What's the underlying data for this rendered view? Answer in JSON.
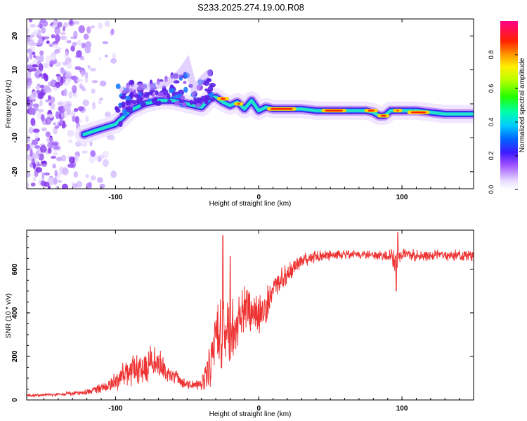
{
  "title": "S233.2025.274.19.00.R08",
  "colorbar": {
    "label": "Normalized spectral amplitude",
    "ticks": [
      "0.0",
      "0.2",
      "0.4",
      "0.6",
      "0.8"
    ],
    "range": [
      0,
      1
    ]
  },
  "chart_data": [
    {
      "type": "heatmap",
      "name": "spectrogram",
      "xlabel": "Height of straight line (km)",
      "ylabel": "Frequency (Hz)",
      "xlim": [
        -162,
        150
      ],
      "ylim": [
        -25,
        25
      ],
      "xticks": [
        -100,
        0,
        100
      ],
      "yticks": [
        -20,
        -10,
        0,
        10,
        20
      ],
      "noise_region_x": [
        -162,
        -110
      ],
      "ridge": {
        "x": [
          -122,
          -115,
          -100,
          -90,
          -80,
          -70,
          -60,
          -50,
          -40,
          -34,
          -30,
          -25,
          -20,
          -15,
          -10,
          -5,
          0,
          5,
          10,
          20,
          30,
          40,
          50,
          60,
          70,
          75,
          80,
          84,
          88,
          92,
          96,
          100,
          110,
          120,
          130,
          140,
          150
        ],
        "y": [
          -9,
          -8,
          -6,
          -2,
          0,
          1,
          1,
          0,
          -1,
          1.5,
          2,
          0.5,
          -0.5,
          0.5,
          -1.5,
          1,
          -2,
          -1,
          -1.5,
          -1.5,
          -1.5,
          -2,
          -2,
          -2,
          -2,
          -2,
          -2.5,
          -3.5,
          -3.5,
          -2,
          -2,
          -2,
          -2,
          -2.5,
          -3,
          -3,
          -3
        ]
      },
      "upper_branch": {
        "x": [
          -95,
          -85,
          -75,
          -65,
          -55,
          -50,
          -45,
          -40,
          -35
        ],
        "y": [
          4,
          5,
          5,
          6,
          9,
          12,
          4,
          7,
          9
        ]
      }
    },
    {
      "type": "line",
      "name": "snr",
      "xlabel": "Height of straight line (km)",
      "ylabel": "SNR (10 * v/v)",
      "xlim": [
        -162,
        150
      ],
      "ylim": [
        0,
        780
      ],
      "xticks": [
        -100,
        0,
        100
      ],
      "yticks": [
        0,
        200,
        400,
        600
      ],
      "color": "#ee3333",
      "envelope": {
        "x": [
          -162,
          -140,
          -120,
          -105,
          -95,
          -85,
          -78,
          -70,
          -60,
          -50,
          -40,
          -34,
          -30,
          -25,
          -20,
          -15,
          -10,
          -5,
          0,
          5,
          10,
          20,
          30,
          40,
          50,
          60,
          70,
          80,
          90,
          95,
          100,
          110,
          120,
          130,
          140,
          150
        ],
        "y": [
          20,
          25,
          35,
          60,
          110,
          150,
          170,
          165,
          110,
          70,
          70,
          170,
          260,
          330,
          310,
          360,
          420,
          390,
          390,
          430,
          520,
          580,
          640,
          660,
          665,
          670,
          670,
          665,
          660,
          640,
          665,
          665,
          665,
          665,
          665,
          665
        ],
        "noise_amp": [
          6,
          8,
          12,
          30,
          60,
          80,
          90,
          80,
          40,
          20,
          30,
          120,
          160,
          180,
          150,
          130,
          110,
          100,
          90,
          80,
          70,
          50,
          35,
          28,
          25,
          22,
          22,
          22,
          25,
          60,
          30,
          28,
          28,
          28,
          28,
          28
        ]
      },
      "spikes": [
        {
          "x": -25,
          "y": 755
        },
        {
          "x": -20,
          "y": 660
        },
        {
          "x": 97,
          "y": 770
        },
        {
          "x": 96,
          "y": 500
        }
      ]
    }
  ]
}
